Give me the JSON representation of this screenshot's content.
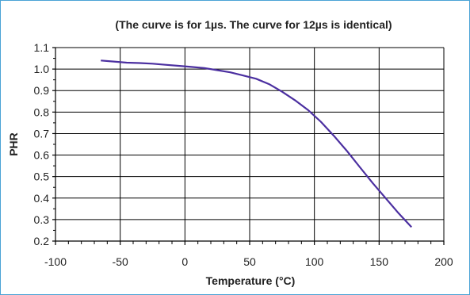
{
  "chart_data": {
    "type": "line",
    "title": "(The curve is for 1µs.  The curve for 12µs is identical)",
    "xlabel": "Temperature (°C)",
    "ylabel": "PHR",
    "xlim": [
      -100,
      200
    ],
    "ylim": [
      0.2,
      1.1
    ],
    "x_ticks": [
      -100,
      -50,
      0,
      50,
      100,
      150,
      200
    ],
    "y_ticks": [
      0.2,
      0.3,
      0.4,
      0.5,
      0.6,
      0.7,
      0.8,
      0.9,
      1.0,
      1.1
    ],
    "x_tick_labels": [
      "-100",
      "-50",
      "0",
      "50",
      "100",
      "150",
      "200"
    ],
    "y_tick_labels": [
      "0.2",
      "0.3",
      "0.4",
      "0.5",
      "0.6",
      "0.7",
      "0.8",
      "0.9",
      "1.0",
      "1.1"
    ],
    "grid": true,
    "series": [
      {
        "color": "#4b2fa0",
        "x": [
          -65,
          -55,
          -45,
          -35,
          -25,
          -15,
          -5,
          5,
          15,
          25,
          35,
          45,
          55,
          65,
          75,
          85,
          95,
          105,
          115,
          125,
          135,
          145,
          155,
          165,
          175
        ],
        "y": [
          1.04,
          1.035,
          1.03,
          1.028,
          1.025,
          1.02,
          1.015,
          1.01,
          1.005,
          0.995,
          0.985,
          0.97,
          0.955,
          0.93,
          0.895,
          0.855,
          0.81,
          0.755,
          0.69,
          0.62,
          0.545,
          0.47,
          0.4,
          0.33,
          0.265
        ]
      }
    ]
  }
}
